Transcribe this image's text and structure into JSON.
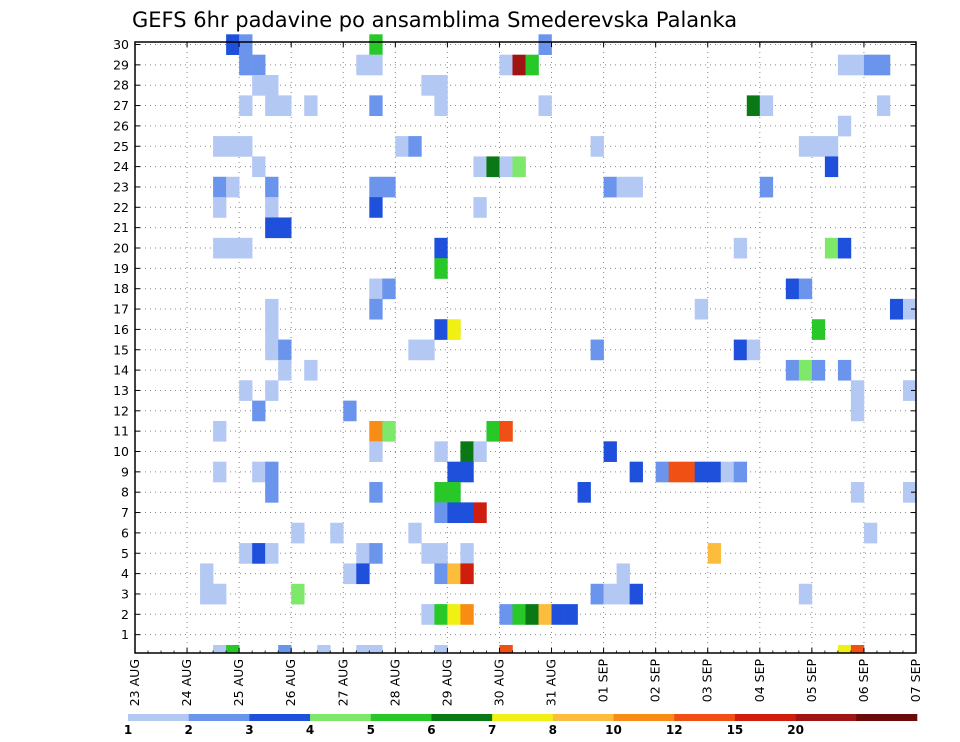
{
  "chart_data": {
    "type": "heatmap",
    "title": "GEFS 6hr padavine po ansamblima Smederevska Palanka",
    "xlabel": "",
    "ylabel": "",
    "x_ticks": [
      "23 AUG",
      "24 AUG",
      "25 AUG",
      "26 AUG",
      "27 AUG",
      "28 AUG",
      "29 AUG",
      "30 AUG",
      "31 AUG",
      "01 SEP",
      "02 SEP",
      "03 SEP",
      "04 SEP",
      "05 SEP",
      "06 SEP",
      "07 SEP"
    ],
    "y_ticks": [
      1,
      2,
      3,
      4,
      5,
      6,
      7,
      8,
      9,
      10,
      11,
      12,
      13,
      14,
      15,
      16,
      17,
      18,
      19,
      20,
      21,
      22,
      23,
      24,
      25,
      26,
      27,
      28,
      29,
      30
    ],
    "x_range_steps": [
      0,
      60
    ],
    "y_range_members": [
      0,
      30
    ],
    "grid": true,
    "colorbar": {
      "levels": [
        "1",
        "2",
        "3",
        "4",
        "5",
        "6",
        "7",
        "8",
        "10",
        "12",
        "15",
        "20"
      ],
      "colors": [
        "#b4c8f4",
        "#6b94ec",
        "#1e50dc",
        "#7ee86a",
        "#28c828",
        "#0a7814",
        "#f0f014",
        "#fcbc3c",
        "#f88c14",
        "#f05014",
        "#d01e0e",
        "#a01414",
        "#6a0a0a"
      ]
    },
    "cells": [
      [
        8,
        30,
        2
      ],
      [
        9,
        30,
        1
      ],
      [
        19,
        30,
        4
      ],
      [
        32,
        30,
        1
      ],
      [
        9,
        29,
        1
      ],
      [
        10,
        29,
        1
      ],
      [
        18,
        29,
        0
      ],
      [
        19,
        29,
        0
      ],
      [
        29,
        29,
        0
      ],
      [
        30,
        29,
        11
      ],
      [
        31,
        29,
        4
      ],
      [
        55,
        29,
        0
      ],
      [
        56,
        29,
        0
      ],
      [
        57,
        29,
        1
      ],
      [
        58,
        29,
        1
      ],
      [
        10,
        28,
        0
      ],
      [
        11,
        28,
        0
      ],
      [
        23,
        28,
        0
      ],
      [
        24,
        28,
        0
      ],
      [
        9,
        27,
        0
      ],
      [
        11,
        27,
        0
      ],
      [
        12,
        27,
        0
      ],
      [
        14,
        27,
        0
      ],
      [
        19,
        27,
        1
      ],
      [
        24,
        27,
        0
      ],
      [
        32,
        27,
        0
      ],
      [
        48,
        27,
        5
      ],
      [
        49,
        27,
        0
      ],
      [
        58,
        27,
        0
      ],
      [
        55,
        26,
        0
      ],
      [
        7,
        25,
        0
      ],
      [
        8,
        25,
        0
      ],
      [
        9,
        25,
        0
      ],
      [
        21,
        25,
        0
      ],
      [
        22,
        25,
        1
      ],
      [
        36,
        25,
        0
      ],
      [
        52,
        25,
        0
      ],
      [
        53,
        25,
        0
      ],
      [
        54,
        25,
        0
      ],
      [
        10,
        24,
        0
      ],
      [
        27,
        24,
        0
      ],
      [
        28,
        24,
        5
      ],
      [
        29,
        24,
        0
      ],
      [
        30,
        24,
        3
      ],
      [
        54,
        24,
        2
      ],
      [
        7,
        23,
        1
      ],
      [
        8,
        23,
        0
      ],
      [
        11,
        23,
        1
      ],
      [
        19,
        23,
        1
      ],
      [
        20,
        23,
        1
      ],
      [
        37,
        23,
        1
      ],
      [
        38,
        23,
        0
      ],
      [
        39,
        23,
        0
      ],
      [
        49,
        23,
        1
      ],
      [
        7,
        22,
        0
      ],
      [
        11,
        22,
        0
      ],
      [
        19,
        22,
        2
      ],
      [
        27,
        22,
        0
      ],
      [
        11,
        21,
        2
      ],
      [
        12,
        21,
        2
      ],
      [
        7,
        20,
        0
      ],
      [
        8,
        20,
        0
      ],
      [
        9,
        20,
        0
      ],
      [
        24,
        20,
        2
      ],
      [
        47,
        20,
        0
      ],
      [
        54,
        20,
        3
      ],
      [
        55,
        20,
        2
      ],
      [
        24,
        19,
        4
      ],
      [
        19,
        18,
        0
      ],
      [
        20,
        18,
        1
      ],
      [
        51,
        18,
        2
      ],
      [
        52,
        18,
        1
      ],
      [
        11,
        17,
        0
      ],
      [
        19,
        17,
        1
      ],
      [
        44,
        17,
        0
      ],
      [
        59,
        17,
        2
      ],
      [
        60,
        17,
        0
      ],
      [
        11,
        16,
        0
      ],
      [
        24,
        16,
        2
      ],
      [
        25,
        16,
        6
      ],
      [
        53,
        16,
        4
      ],
      [
        11,
        15,
        0
      ],
      [
        12,
        15,
        1
      ],
      [
        22,
        15,
        0
      ],
      [
        23,
        15,
        0
      ],
      [
        36,
        15,
        1
      ],
      [
        47,
        15,
        2
      ],
      [
        48,
        15,
        0
      ],
      [
        12,
        14,
        0
      ],
      [
        14,
        14,
        0
      ],
      [
        51,
        14,
        1
      ],
      [
        52,
        14,
        3
      ],
      [
        53,
        14,
        1
      ],
      [
        55,
        14,
        1
      ],
      [
        9,
        13,
        0
      ],
      [
        11,
        13,
        0
      ],
      [
        56,
        13,
        0
      ],
      [
        60,
        13,
        0
      ],
      [
        10,
        12,
        1
      ],
      [
        17,
        12,
        1
      ],
      [
        56,
        12,
        0
      ],
      [
        7,
        11,
        0
      ],
      [
        19,
        11,
        8
      ],
      [
        20,
        11,
        3
      ],
      [
        28,
        11,
        4
      ],
      [
        29,
        11,
        9
      ],
      [
        19,
        10,
        0
      ],
      [
        24,
        10,
        0
      ],
      [
        26,
        10,
        5
      ],
      [
        27,
        10,
        0
      ],
      [
        37,
        10,
        2
      ],
      [
        7,
        9,
        0
      ],
      [
        10,
        9,
        0
      ],
      [
        11,
        9,
        1
      ],
      [
        25,
        9,
        2
      ],
      [
        26,
        9,
        2
      ],
      [
        39,
        9,
        2
      ],
      [
        41,
        9,
        1
      ],
      [
        42,
        9,
        9
      ],
      [
        43,
        9,
        9
      ],
      [
        44,
        9,
        2
      ],
      [
        45,
        9,
        2
      ],
      [
        46,
        9,
        0
      ],
      [
        47,
        9,
        1
      ],
      [
        11,
        8,
        1
      ],
      [
        19,
        8,
        1
      ],
      [
        24,
        8,
        4
      ],
      [
        25,
        8,
        4
      ],
      [
        35,
        8,
        2
      ],
      [
        56,
        8,
        0
      ],
      [
        60,
        8,
        0
      ],
      [
        24,
        7,
        1
      ],
      [
        25,
        7,
        2
      ],
      [
        26,
        7,
        2
      ],
      [
        27,
        7,
        10
      ],
      [
        13,
        6,
        0
      ],
      [
        16,
        6,
        0
      ],
      [
        22,
        6,
        0
      ],
      [
        57,
        6,
        0
      ],
      [
        9,
        5,
        0
      ],
      [
        10,
        5,
        2
      ],
      [
        11,
        5,
        0
      ],
      [
        18,
        5,
        0
      ],
      [
        19,
        5,
        1
      ],
      [
        23,
        5,
        0
      ],
      [
        24,
        5,
        0
      ],
      [
        26,
        5,
        0
      ],
      [
        45,
        5,
        7
      ],
      [
        6,
        4,
        0
      ],
      [
        17,
        4,
        0
      ],
      [
        18,
        4,
        2
      ],
      [
        24,
        4,
        1
      ],
      [
        25,
        4,
        7
      ],
      [
        26,
        4,
        10
      ],
      [
        38,
        4,
        0
      ],
      [
        6,
        3,
        0
      ],
      [
        7,
        3,
        0
      ],
      [
        13,
        3,
        3
      ],
      [
        36,
        3,
        1
      ],
      [
        37,
        3,
        0
      ],
      [
        38,
        3,
        0
      ],
      [
        39,
        3,
        2
      ],
      [
        52,
        3,
        0
      ],
      [
        23,
        2,
        0
      ],
      [
        24,
        2,
        4
      ],
      [
        25,
        2,
        6
      ],
      [
        26,
        2,
        8
      ],
      [
        29,
        2,
        1
      ],
      [
        30,
        2,
        4
      ],
      [
        31,
        2,
        5
      ],
      [
        32,
        2,
        7
      ],
      [
        33,
        2,
        2
      ],
      [
        34,
        2,
        2
      ]
    ],
    "bottom_row": [
      [
        7,
        0
      ],
      [
        8,
        4
      ],
      [
        12,
        1
      ],
      [
        15,
        0
      ],
      [
        18,
        0
      ],
      [
        19,
        0
      ],
      [
        24,
        0
      ],
      [
        29,
        9
      ],
      [
        55,
        6
      ],
      [
        56,
        9
      ]
    ]
  }
}
